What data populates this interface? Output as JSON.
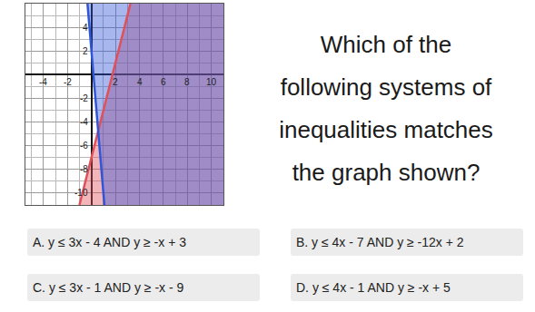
{
  "chart_data": {
    "type": "line",
    "series": [
      {
        "color": "#e0505a",
        "x": [
          -1,
          3.25
        ],
        "values": [
          -11,
          6
        ]
      },
      {
        "color": "#2f56d8",
        "x": [
          -0.33,
          1.08
        ],
        "values": [
          6,
          -11
        ]
      }
    ],
    "xlim": [
      -5.5,
      11
    ],
    "xticks": [
      -4,
      -2,
      2,
      4,
      6,
      8,
      10
    ],
    "ylim": [
      -11,
      6
    ],
    "yticks": [
      -10,
      -8,
      -6,
      -4,
      -2,
      2,
      4
    ],
    "grid": true
  },
  "question": [
    "Which of the",
    "following systems of",
    "inequalities matches",
    "the graph shown?"
  ],
  "choices": [
    {
      "letter": "A.",
      "text": "y ≤ 3x - 4 AND y ≥ -x + 3"
    },
    {
      "letter": "B.",
      "text": "y ≤ 4x - 7 AND y ≥ -12x + 2"
    },
    {
      "letter": "C.",
      "text": "y ≤ 3x - 1 AND y ≥ -x - 9"
    },
    {
      "letter": "D.",
      "text": "y ≤ 4x - 1 AND y ≥ -x + 5"
    }
  ]
}
